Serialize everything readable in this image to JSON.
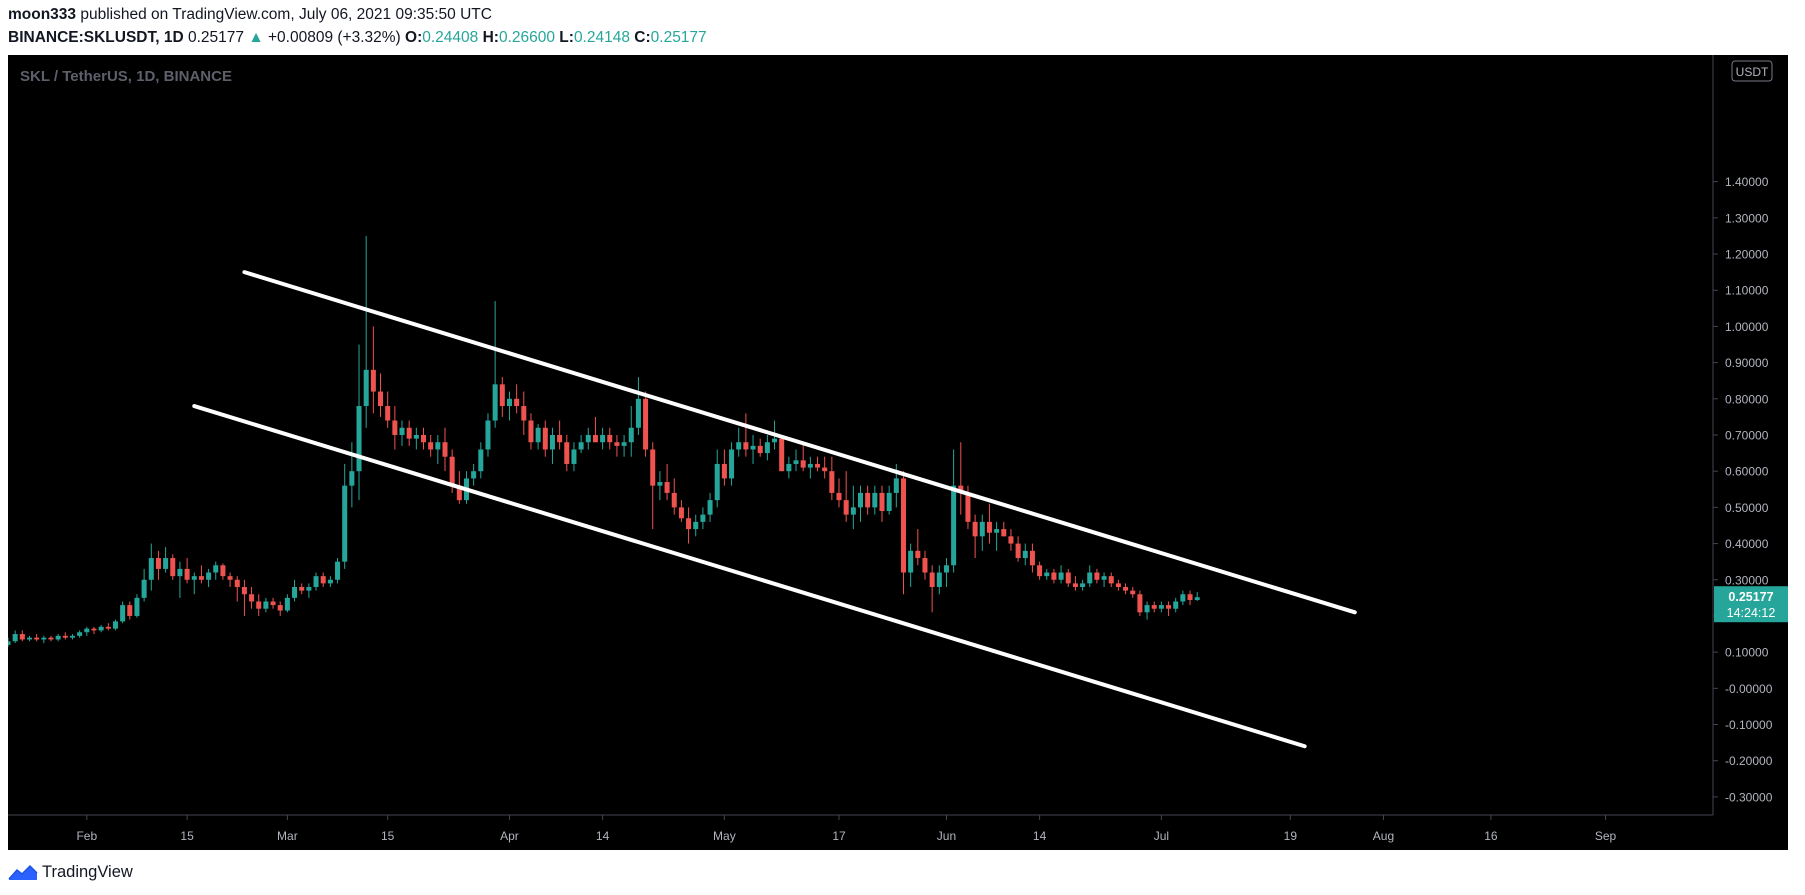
{
  "header": {
    "author": "moon333",
    "published_text": "published on TradingView.com, July 06, 2021 09:35:50 UTC",
    "symbol": "BINANCE:SKLUSDT, 1D",
    "last": "0.25177",
    "change": "+0.00809 (+3.32%)",
    "o_label": "O:",
    "o_value": "0.24408",
    "h_label": "H:",
    "h_value": "0.26600",
    "l_label": "L:",
    "l_value": "0.24148",
    "c_label": "C:",
    "c_value": "0.25177"
  },
  "footer": {
    "brand": "TradingView",
    "icon": "tradingview-logo-icon"
  },
  "colors": {
    "background": "#000000",
    "up": "#26a69a",
    "down": "#ef5350",
    "axis_text": "#b2b5be",
    "trendline": "#ffffff",
    "watermark": "#5d606b"
  },
  "chart_data": {
    "type": "candlestick",
    "title": "SKL / TetherUS, 1D, BINANCE",
    "currency_label": "USDT",
    "last_price_label": "0.25177",
    "countdown_label": "14:24:12",
    "y_axis": {
      "range": [
        -0.35,
        1.75
      ],
      "ticks": [
        -0.3,
        -0.2,
        -0.1,
        0.0,
        0.1,
        0.2,
        0.3,
        0.4,
        0.5,
        0.6,
        0.7,
        0.8,
        0.9,
        1.0,
        1.1,
        1.2,
        1.3,
        1.4
      ],
      "tick_labels": [
        "-0.30000",
        "-0.20000",
        "-0.10000",
        "-0.00000",
        "0.10000",
        "0.20000",
        "0.30000",
        "0.40000",
        "0.50000",
        "0.60000",
        "0.70000",
        "0.80000",
        "0.90000",
        "1.00000",
        "1.10000",
        "1.20000",
        "1.30000",
        "1.40000"
      ]
    },
    "x_axis": {
      "range": [
        "2021-01-21",
        "2021-09-16"
      ],
      "ticks": [
        {
          "date": "2021-02-01",
          "label": "Feb"
        },
        {
          "date": "2021-02-15",
          "label": "15"
        },
        {
          "date": "2021-03-01",
          "label": "Mar"
        },
        {
          "date": "2021-03-15",
          "label": "15"
        },
        {
          "date": "2021-04-01",
          "label": "Apr"
        },
        {
          "date": "2021-04-14",
          "label": "14"
        },
        {
          "date": "2021-05-01",
          "label": "May"
        },
        {
          "date": "2021-05-17",
          "label": "17"
        },
        {
          "date": "2021-06-01",
          "label": "Jun"
        },
        {
          "date": "2021-06-14",
          "label": "14"
        },
        {
          "date": "2021-07-01",
          "label": "Jul"
        },
        {
          "date": "2021-07-19",
          "label": "19"
        },
        {
          "date": "2021-08-01",
          "label": "Aug"
        },
        {
          "date": "2021-08-16",
          "label": "16"
        },
        {
          "date": "2021-09-01",
          "label": "Sep"
        }
      ]
    },
    "trendlines": [
      {
        "from": {
          "date": "2021-02-23",
          "price": 1.15
        },
        "to": {
          "date": "2021-07-28",
          "price": 0.21
        }
      },
      {
        "from": {
          "date": "2021-02-16",
          "price": 0.78
        },
        "to": {
          "date": "2021-07-21",
          "price": -0.16
        }
      }
    ],
    "candles": [
      [
        "2021-01-21",
        0.12,
        0.14,
        0.115,
        0.13
      ],
      [
        "2021-01-22",
        0.13,
        0.16,
        0.125,
        0.15
      ],
      [
        "2021-01-23",
        0.15,
        0.16,
        0.13,
        0.135
      ],
      [
        "2021-01-24",
        0.135,
        0.145,
        0.13,
        0.14
      ],
      [
        "2021-01-25",
        0.14,
        0.15,
        0.13,
        0.135
      ],
      [
        "2021-01-26",
        0.135,
        0.145,
        0.125,
        0.14
      ],
      [
        "2021-01-27",
        0.14,
        0.145,
        0.13,
        0.135
      ],
      [
        "2021-01-28",
        0.135,
        0.15,
        0.13,
        0.145
      ],
      [
        "2021-01-29",
        0.145,
        0.155,
        0.135,
        0.14
      ],
      [
        "2021-01-30",
        0.14,
        0.15,
        0.135,
        0.145
      ],
      [
        "2021-01-31",
        0.145,
        0.16,
        0.14,
        0.155
      ],
      [
        "2021-02-01",
        0.155,
        0.17,
        0.145,
        0.165
      ],
      [
        "2021-02-02",
        0.165,
        0.17,
        0.15,
        0.16
      ],
      [
        "2021-02-03",
        0.16,
        0.175,
        0.155,
        0.17
      ],
      [
        "2021-02-04",
        0.17,
        0.18,
        0.16,
        0.165
      ],
      [
        "2021-02-05",
        0.165,
        0.19,
        0.16,
        0.185
      ],
      [
        "2021-02-06",
        0.185,
        0.24,
        0.18,
        0.23
      ],
      [
        "2021-02-07",
        0.23,
        0.24,
        0.19,
        0.2
      ],
      [
        "2021-02-08",
        0.2,
        0.26,
        0.195,
        0.25
      ],
      [
        "2021-02-09",
        0.25,
        0.33,
        0.24,
        0.3
      ],
      [
        "2021-02-10",
        0.3,
        0.4,
        0.27,
        0.36
      ],
      [
        "2021-02-11",
        0.36,
        0.38,
        0.3,
        0.33
      ],
      [
        "2021-02-12",
        0.33,
        0.39,
        0.32,
        0.36
      ],
      [
        "2021-02-13",
        0.36,
        0.37,
        0.3,
        0.31
      ],
      [
        "2021-02-14",
        0.31,
        0.35,
        0.25,
        0.33
      ],
      [
        "2021-02-15",
        0.33,
        0.36,
        0.29,
        0.3
      ],
      [
        "2021-02-16",
        0.3,
        0.32,
        0.26,
        0.31
      ],
      [
        "2021-02-17",
        0.31,
        0.34,
        0.29,
        0.3
      ],
      [
        "2021-02-18",
        0.3,
        0.33,
        0.28,
        0.32
      ],
      [
        "2021-02-19",
        0.32,
        0.35,
        0.3,
        0.34
      ],
      [
        "2021-02-20",
        0.34,
        0.345,
        0.3,
        0.31
      ],
      [
        "2021-02-21",
        0.31,
        0.32,
        0.28,
        0.3
      ],
      [
        "2021-02-22",
        0.3,
        0.31,
        0.24,
        0.28
      ],
      [
        "2021-02-23",
        0.28,
        0.3,
        0.2,
        0.26
      ],
      [
        "2021-02-24",
        0.26,
        0.28,
        0.22,
        0.24
      ],
      [
        "2021-02-25",
        0.24,
        0.26,
        0.2,
        0.22
      ],
      [
        "2021-02-26",
        0.22,
        0.25,
        0.21,
        0.24
      ],
      [
        "2021-02-27",
        0.24,
        0.25,
        0.22,
        0.23
      ],
      [
        "2021-02-28",
        0.23,
        0.24,
        0.2,
        0.215
      ],
      [
        "2021-03-01",
        0.215,
        0.26,
        0.21,
        0.25
      ],
      [
        "2021-03-02",
        0.25,
        0.3,
        0.24,
        0.28
      ],
      [
        "2021-03-03",
        0.28,
        0.29,
        0.26,
        0.27
      ],
      [
        "2021-03-04",
        0.27,
        0.29,
        0.25,
        0.28
      ],
      [
        "2021-03-05",
        0.28,
        0.32,
        0.27,
        0.31
      ],
      [
        "2021-03-06",
        0.31,
        0.32,
        0.28,
        0.29
      ],
      [
        "2021-03-07",
        0.29,
        0.31,
        0.28,
        0.3
      ],
      [
        "2021-03-08",
        0.3,
        0.36,
        0.29,
        0.35
      ],
      [
        "2021-03-09",
        0.35,
        0.62,
        0.33,
        0.56
      ],
      [
        "2021-03-10",
        0.56,
        0.68,
        0.5,
        0.6
      ],
      [
        "2021-03-11",
        0.6,
        0.95,
        0.52,
        0.78
      ],
      [
        "2021-03-12",
        0.78,
        1.25,
        0.72,
        0.88
      ],
      [
        "2021-03-13",
        0.88,
        1.0,
        0.76,
        0.82
      ],
      [
        "2021-03-14",
        0.82,
        0.87,
        0.75,
        0.78
      ],
      [
        "2021-03-15",
        0.78,
        0.82,
        0.72,
        0.74
      ],
      [
        "2021-03-16",
        0.74,
        0.78,
        0.66,
        0.7
      ],
      [
        "2021-03-17",
        0.7,
        0.74,
        0.67,
        0.72
      ],
      [
        "2021-03-18",
        0.72,
        0.74,
        0.67,
        0.69
      ],
      [
        "2021-03-19",
        0.69,
        0.72,
        0.66,
        0.7
      ],
      [
        "2021-03-20",
        0.7,
        0.72,
        0.66,
        0.68
      ],
      [
        "2021-03-21",
        0.68,
        0.7,
        0.64,
        0.66
      ],
      [
        "2021-03-22",
        0.66,
        0.7,
        0.62,
        0.68
      ],
      [
        "2021-03-23",
        0.68,
        0.72,
        0.6,
        0.64
      ],
      [
        "2021-03-24",
        0.64,
        0.66,
        0.54,
        0.56
      ],
      [
        "2021-03-25",
        0.56,
        0.6,
        0.51,
        0.52
      ],
      [
        "2021-03-26",
        0.52,
        0.6,
        0.51,
        0.58
      ],
      [
        "2021-03-27",
        0.58,
        0.62,
        0.56,
        0.6
      ],
      [
        "2021-03-28",
        0.6,
        0.68,
        0.58,
        0.66
      ],
      [
        "2021-03-29",
        0.66,
        0.76,
        0.64,
        0.74
      ],
      [
        "2021-03-30",
        0.74,
        1.07,
        0.72,
        0.84
      ],
      [
        "2021-03-31",
        0.84,
        0.86,
        0.75,
        0.78
      ],
      [
        "2021-04-01",
        0.78,
        0.82,
        0.74,
        0.8
      ],
      [
        "2021-04-02",
        0.8,
        0.84,
        0.76,
        0.78
      ],
      [
        "2021-04-03",
        0.78,
        0.82,
        0.7,
        0.74
      ],
      [
        "2021-04-04",
        0.74,
        0.76,
        0.66,
        0.68
      ],
      [
        "2021-04-05",
        0.68,
        0.73,
        0.66,
        0.72
      ],
      [
        "2021-04-06",
        0.72,
        0.74,
        0.64,
        0.66
      ],
      [
        "2021-04-07",
        0.66,
        0.72,
        0.62,
        0.7
      ],
      [
        "2021-04-08",
        0.7,
        0.74,
        0.66,
        0.68
      ],
      [
        "2021-04-09",
        0.68,
        0.7,
        0.6,
        0.62
      ],
      [
        "2021-04-10",
        0.62,
        0.68,
        0.6,
        0.66
      ],
      [
        "2021-04-11",
        0.66,
        0.7,
        0.65,
        0.68
      ],
      [
        "2021-04-12",
        0.68,
        0.72,
        0.66,
        0.7
      ],
      [
        "2021-04-13",
        0.7,
        0.75,
        0.68,
        0.68
      ],
      [
        "2021-04-14",
        0.68,
        0.72,
        0.66,
        0.7
      ],
      [
        "2021-04-15",
        0.7,
        0.72,
        0.66,
        0.68
      ],
      [
        "2021-04-16",
        0.68,
        0.7,
        0.64,
        0.67
      ],
      [
        "2021-04-17",
        0.67,
        0.7,
        0.64,
        0.68
      ],
      [
        "2021-04-18",
        0.68,
        0.78,
        0.64,
        0.72
      ],
      [
        "2021-04-19",
        0.72,
        0.86,
        0.7,
        0.8
      ],
      [
        "2021-04-20",
        0.8,
        0.82,
        0.64,
        0.66
      ],
      [
        "2021-04-21",
        0.66,
        0.68,
        0.44,
        0.56
      ],
      [
        "2021-04-22",
        0.56,
        0.6,
        0.52,
        0.57
      ],
      [
        "2021-04-23",
        0.57,
        0.62,
        0.52,
        0.54
      ],
      [
        "2021-04-24",
        0.54,
        0.58,
        0.48,
        0.5
      ],
      [
        "2021-04-25",
        0.5,
        0.52,
        0.46,
        0.47
      ],
      [
        "2021-04-26",
        0.47,
        0.5,
        0.4,
        0.44
      ],
      [
        "2021-04-27",
        0.44,
        0.48,
        0.42,
        0.46
      ],
      [
        "2021-04-28",
        0.46,
        0.5,
        0.44,
        0.48
      ],
      [
        "2021-04-29",
        0.48,
        0.54,
        0.46,
        0.52
      ],
      [
        "2021-04-30",
        0.52,
        0.66,
        0.5,
        0.62
      ],
      [
        "2021-05-01",
        0.62,
        0.66,
        0.56,
        0.58
      ],
      [
        "2021-05-02",
        0.58,
        0.68,
        0.56,
        0.66
      ],
      [
        "2021-05-03",
        0.66,
        0.72,
        0.64,
        0.68
      ],
      [
        "2021-05-04",
        0.68,
        0.76,
        0.64,
        0.66
      ],
      [
        "2021-05-05",
        0.66,
        0.7,
        0.62,
        0.67
      ],
      [
        "2021-05-06",
        0.67,
        0.69,
        0.64,
        0.65
      ],
      [
        "2021-05-07",
        0.65,
        0.7,
        0.63,
        0.68
      ],
      [
        "2021-05-08",
        0.68,
        0.74,
        0.66,
        0.69
      ],
      [
        "2021-05-09",
        0.69,
        0.7,
        0.6,
        0.6
      ],
      [
        "2021-05-10",
        0.6,
        0.64,
        0.58,
        0.62
      ],
      [
        "2021-05-11",
        0.62,
        0.66,
        0.6,
        0.63
      ],
      [
        "2021-05-12",
        0.63,
        0.68,
        0.6,
        0.61
      ],
      [
        "2021-05-13",
        0.61,
        0.64,
        0.58,
        0.62
      ],
      [
        "2021-05-14",
        0.62,
        0.64,
        0.6,
        0.61
      ],
      [
        "2021-05-15",
        0.61,
        0.64,
        0.58,
        0.6
      ],
      [
        "2021-05-16",
        0.6,
        0.64,
        0.52,
        0.54
      ],
      [
        "2021-05-17",
        0.54,
        0.58,
        0.5,
        0.52
      ],
      [
        "2021-05-18",
        0.52,
        0.6,
        0.46,
        0.48
      ],
      [
        "2021-05-19",
        0.48,
        0.56,
        0.44,
        0.5
      ],
      [
        "2021-05-20",
        0.5,
        0.56,
        0.46,
        0.54
      ],
      [
        "2021-05-21",
        0.54,
        0.56,
        0.48,
        0.5
      ],
      [
        "2021-05-22",
        0.5,
        0.56,
        0.48,
        0.54
      ],
      [
        "2021-05-23",
        0.54,
        0.56,
        0.46,
        0.49
      ],
      [
        "2021-05-24",
        0.49,
        0.56,
        0.48,
        0.54
      ],
      [
        "2021-05-25",
        0.54,
        0.62,
        0.5,
        0.58
      ],
      [
        "2021-05-26",
        0.58,
        0.6,
        0.26,
        0.32
      ],
      [
        "2021-05-27",
        0.32,
        0.4,
        0.28,
        0.38
      ],
      [
        "2021-05-28",
        0.38,
        0.44,
        0.34,
        0.36
      ],
      [
        "2021-05-29",
        0.36,
        0.38,
        0.3,
        0.32
      ],
      [
        "2021-05-30",
        0.32,
        0.34,
        0.21,
        0.28
      ],
      [
        "2021-05-31",
        0.28,
        0.34,
        0.26,
        0.32
      ],
      [
        "2021-06-01",
        0.32,
        0.36,
        0.28,
        0.34
      ],
      [
        "2021-06-02",
        0.34,
        0.66,
        0.32,
        0.56
      ],
      [
        "2021-06-03",
        0.56,
        0.68,
        0.48,
        0.54
      ],
      [
        "2021-06-04",
        0.54,
        0.56,
        0.44,
        0.46
      ],
      [
        "2021-06-05",
        0.46,
        0.48,
        0.36,
        0.42
      ],
      [
        "2021-06-06",
        0.42,
        0.48,
        0.38,
        0.46
      ],
      [
        "2021-06-07",
        0.46,
        0.51,
        0.4,
        0.43
      ],
      [
        "2021-06-08",
        0.43,
        0.46,
        0.38,
        0.44
      ],
      [
        "2021-06-09",
        0.44,
        0.46,
        0.42,
        0.42
      ],
      [
        "2021-06-10",
        0.42,
        0.44,
        0.38,
        0.4
      ],
      [
        "2021-06-11",
        0.4,
        0.42,
        0.35,
        0.36
      ],
      [
        "2021-06-12",
        0.36,
        0.4,
        0.34,
        0.38
      ],
      [
        "2021-06-13",
        0.38,
        0.4,
        0.32,
        0.34
      ],
      [
        "2021-06-14",
        0.34,
        0.35,
        0.3,
        0.31
      ],
      [
        "2021-06-15",
        0.31,
        0.33,
        0.3,
        0.32
      ],
      [
        "2021-06-16",
        0.32,
        0.33,
        0.29,
        0.3
      ],
      [
        "2021-06-17",
        0.3,
        0.34,
        0.29,
        0.32
      ],
      [
        "2021-06-18",
        0.32,
        0.33,
        0.28,
        0.29
      ],
      [
        "2021-06-19",
        0.29,
        0.31,
        0.27,
        0.28
      ],
      [
        "2021-06-20",
        0.28,
        0.3,
        0.27,
        0.29
      ],
      [
        "2021-06-21",
        0.29,
        0.34,
        0.28,
        0.32
      ],
      [
        "2021-06-22",
        0.32,
        0.33,
        0.29,
        0.3
      ],
      [
        "2021-06-23",
        0.3,
        0.32,
        0.28,
        0.31
      ],
      [
        "2021-06-24",
        0.31,
        0.32,
        0.28,
        0.29
      ],
      [
        "2021-06-25",
        0.29,
        0.3,
        0.27,
        0.28
      ],
      [
        "2021-06-26",
        0.28,
        0.29,
        0.26,
        0.27
      ],
      [
        "2021-06-27",
        0.27,
        0.28,
        0.25,
        0.26
      ],
      [
        "2021-06-28",
        0.26,
        0.27,
        0.2,
        0.21
      ],
      [
        "2021-06-29",
        0.21,
        0.24,
        0.19,
        0.23
      ],
      [
        "2021-06-30",
        0.23,
        0.24,
        0.21,
        0.22
      ],
      [
        "2021-07-01",
        0.22,
        0.24,
        0.21,
        0.23
      ],
      [
        "2021-07-02",
        0.23,
        0.24,
        0.2,
        0.22
      ],
      [
        "2021-07-03",
        0.22,
        0.25,
        0.21,
        0.24
      ],
      [
        "2021-07-04",
        0.24,
        0.27,
        0.23,
        0.26
      ],
      [
        "2021-07-05",
        0.26,
        0.27,
        0.23,
        0.244
      ],
      [
        "2021-07-06",
        0.24408,
        0.266,
        0.24148,
        0.25177
      ]
    ]
  }
}
